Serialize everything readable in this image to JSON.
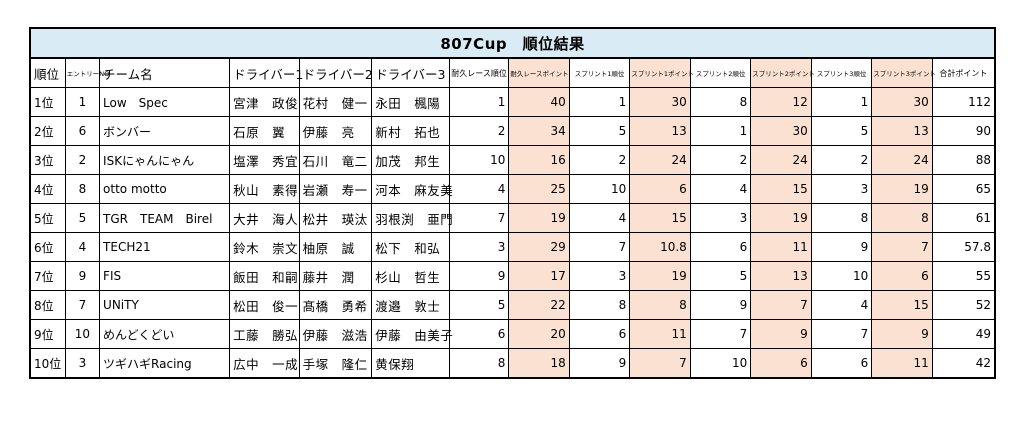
{
  "title": "807Cup　順位結果",
  "headers": {
    "rank": "順位",
    "entry": "エントリーNO",
    "team": "チーム名",
    "driver1": "ドライバー1",
    "driver2": "ドライバー2",
    "driver3": "ドライバー3",
    "endurance_rank": "耐久レース順位",
    "endurance_points": "耐久レースポイント",
    "sprint1_rank": "スプリント1順位",
    "sprint1_points": "スプリント1ポイント",
    "sprint2_rank": "スプリント2順位",
    "sprint2_points": "スプリント2ポイント",
    "sprint3_rank": "スプリント3順位",
    "sprint3_points": "スプリント3ポイント",
    "total": "合計ポイント"
  },
  "rows": [
    {
      "rank": "1位",
      "entry": "1",
      "team": "Low　Spec",
      "d1": "宮津　政俊",
      "d2": "花村　健一",
      "d3": "永田　楓陽",
      "er": "1",
      "ep": "40",
      "s1r": "1",
      "s1p": "30",
      "s2r": "8",
      "s2p": "12",
      "s3r": "1",
      "s3p": "30",
      "total": "112"
    },
    {
      "rank": "2位",
      "entry": "6",
      "team": "ボンバー",
      "d1": "石原　翼",
      "d2": "伊藤　亮",
      "d3": "新村　拓也",
      "er": "2",
      "ep": "34",
      "s1r": "5",
      "s1p": "13",
      "s2r": "1",
      "s2p": "30",
      "s3r": "5",
      "s3p": "13",
      "total": "90"
    },
    {
      "rank": "3位",
      "entry": "2",
      "team": "ISKにゃんにゃん",
      "d1": "塩澤　秀宜",
      "d2": "石川　竜二",
      "d3": "加茂　邦生",
      "er": "10",
      "ep": "16",
      "s1r": "2",
      "s1p": "24",
      "s2r": "2",
      "s2p": "24",
      "s3r": "2",
      "s3p": "24",
      "total": "88"
    },
    {
      "rank": "4位",
      "entry": "8",
      "team": "otto motto",
      "d1": "秋山　素得",
      "d2": "岩瀬　寿一",
      "d3": "河本　麻友美",
      "er": "4",
      "ep": "25",
      "s1r": "10",
      "s1p": "6",
      "s2r": "4",
      "s2p": "15",
      "s3r": "3",
      "s3p": "19",
      "total": "65"
    },
    {
      "rank": "5位",
      "entry": "5",
      "team": "TGR　TEAM　Birel",
      "d1": "大井　海人",
      "d2": "松井　瑛汰",
      "d3": "羽根渕　亜門",
      "er": "7",
      "ep": "19",
      "s1r": "4",
      "s1p": "15",
      "s2r": "3",
      "s2p": "19",
      "s3r": "8",
      "s3p": "8",
      "total": "61"
    },
    {
      "rank": "6位",
      "entry": "4",
      "team": "TECH21",
      "d1": "鈴木　崇文",
      "d2": "柚原　誠",
      "d3": "松下　和弘",
      "er": "3",
      "ep": "29",
      "s1r": "7",
      "s1p": "10.8",
      "s2r": "6",
      "s2p": "11",
      "s3r": "9",
      "s3p": "7",
      "total": "57.8"
    },
    {
      "rank": "7位",
      "entry": "9",
      "team": "FIS",
      "d1": "飯田　和嗣",
      "d2": "藤井　潤",
      "d3": "杉山　哲生",
      "er": "9",
      "ep": "17",
      "s1r": "3",
      "s1p": "19",
      "s2r": "5",
      "s2p": "13",
      "s3r": "10",
      "s3p": "6",
      "total": "55"
    },
    {
      "rank": "8位",
      "entry": "7",
      "team": "UNiTY",
      "d1": "松田　俊一",
      "d2": "髙橋　勇希",
      "d3": "渡邉　敦士",
      "er": "5",
      "ep": "22",
      "s1r": "8",
      "s1p": "8",
      "s2r": "9",
      "s2p": "7",
      "s3r": "4",
      "s3p": "15",
      "total": "52"
    },
    {
      "rank": "9位",
      "entry": "10",
      "team": "めんどくどい",
      "d1": "工藤　勝弘",
      "d2": "伊藤　滋浩",
      "d3": "伊藤　由美子",
      "er": "6",
      "ep": "20",
      "s1r": "6",
      "s1p": "11",
      "s2r": "7",
      "s2p": "9",
      "s3r": "7",
      "s3p": "9",
      "total": "49"
    },
    {
      "rank": "10位",
      "entry": "3",
      "team": "ツギハギRacing",
      "d1": "広中　一成",
      "d2": "手塚　隆仁",
      "d3": "黄保翔",
      "er": "8",
      "ep": "18",
      "s1r": "9",
      "s1p": "7",
      "s2r": "10",
      "s2p": "6",
      "s3r": "6",
      "s3p": "11",
      "total": "42"
    }
  ]
}
